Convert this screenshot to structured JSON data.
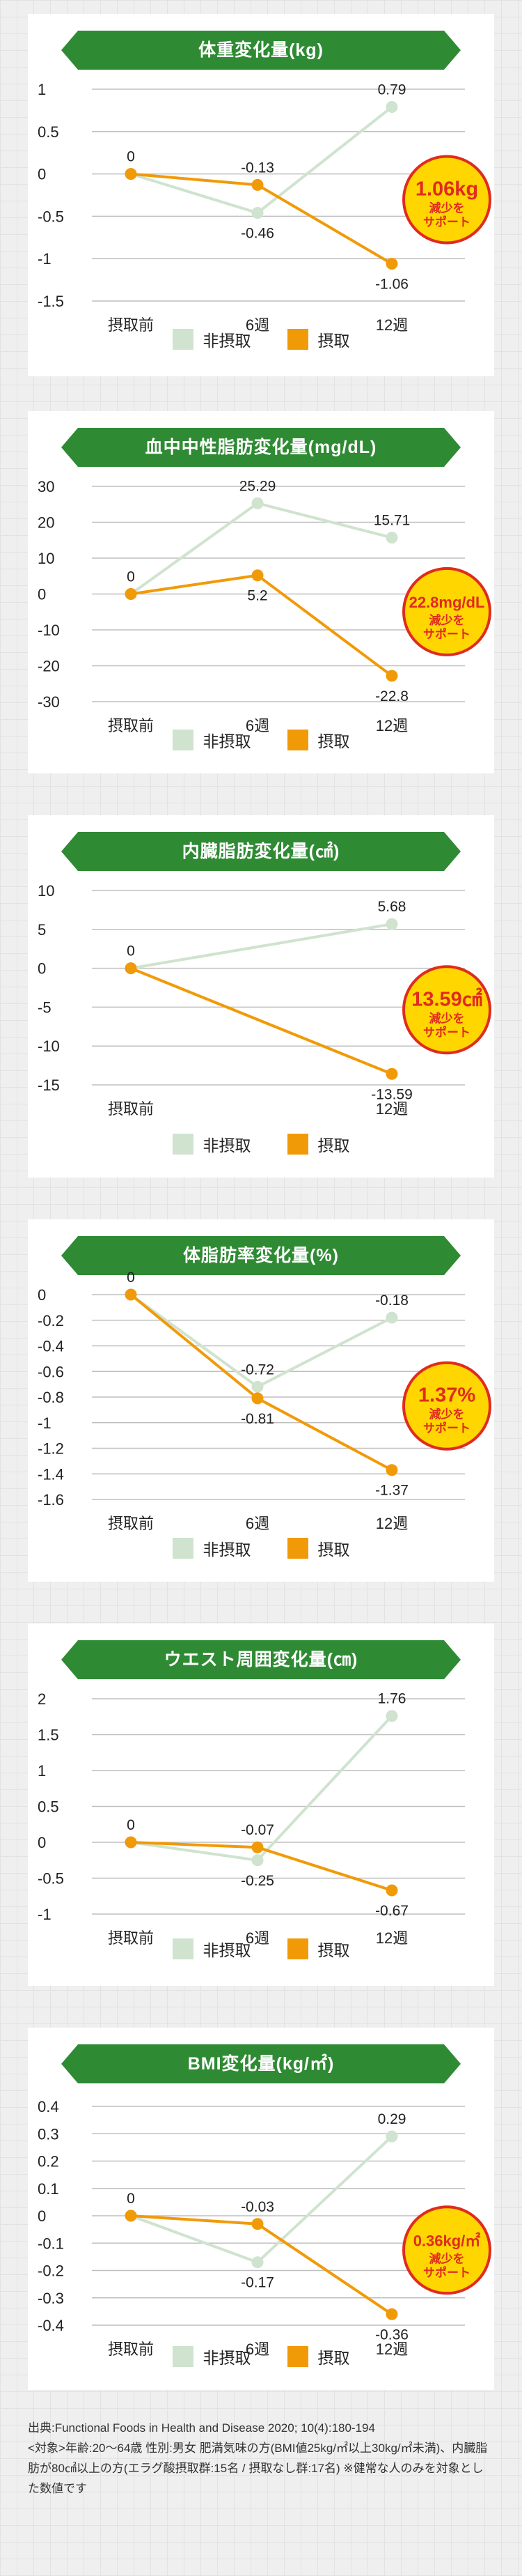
{
  "colors": {
    "banner": "#2f8a34",
    "series_non": "#cfe3cf",
    "series_take": "#f19a08",
    "grid": "#bfbfbf",
    "badge_fill": "#ffd600",
    "badge_stroke": "#e02b1f",
    "badge_text": "#e02b1f"
  },
  "legend": {
    "non_intake": "非摂取",
    "intake": "摂取"
  },
  "charts": [
    {
      "title": "体重変化量(kg)",
      "chart_data": {
        "type": "line",
        "categories": [
          "摂取前",
          "6週",
          "12週"
        ],
        "ylim": [
          -1.5,
          1
        ],
        "yticks": [
          "1",
          "0.5",
          "0",
          "-0.5",
          "-1",
          "-1.5"
        ],
        "series": [
          {
            "name": "非摂取",
            "values": [
              0,
              -0.46,
              0.79
            ],
            "labels": [
              "",
              "-0.46",
              "0.79"
            ]
          },
          {
            "name": "摂取",
            "values": [
              0,
              -0.13,
              -1.06
            ],
            "labels": [
              "0",
              "-0.13",
              "-1.06"
            ]
          }
        ]
      },
      "badge": {
        "value": "1.06kg",
        "line1": "減少を",
        "line2": "サポート"
      }
    },
    {
      "title": "血中中性脂肪変化量(mg/dL)",
      "chart_data": {
        "type": "line",
        "categories": [
          "摂取前",
          "6週",
          "12週"
        ],
        "ylim": [
          -30,
          30
        ],
        "yticks": [
          "30",
          "20",
          "10",
          "0",
          "-10",
          "-20",
          "-30"
        ],
        "series": [
          {
            "name": "非摂取",
            "values": [
              0,
              25.29,
              15.71
            ],
            "labels": [
              "",
              "25.29",
              "15.71"
            ]
          },
          {
            "name": "摂取",
            "values": [
              0,
              5.2,
              -22.8
            ],
            "labels": [
              "0",
              "5.2",
              "-22.8"
            ]
          }
        ]
      },
      "badge": {
        "value": "22.8mg/dL",
        "line1": "減少を",
        "line2": "サポート"
      }
    },
    {
      "title": "内臓脂肪変化量(㎠)",
      "chart_data": {
        "type": "line",
        "categories": [
          "摂取前",
          "12週"
        ],
        "ylim": [
          -15,
          10
        ],
        "yticks": [
          "10",
          "5",
          "0",
          "-5",
          "-10",
          "-15"
        ],
        "series": [
          {
            "name": "非摂取",
            "values": [
              0,
              5.68
            ],
            "labels": [
              "",
              "5.68"
            ]
          },
          {
            "name": "摂取",
            "values": [
              0,
              -13.59
            ],
            "labels": [
              "0",
              "-13.59"
            ]
          }
        ]
      },
      "badge": {
        "value": "13.59㎠",
        "line1": "減少を",
        "line2": "サポート"
      }
    },
    {
      "title": "体脂肪率変化量(%)",
      "chart_data": {
        "type": "line",
        "categories": [
          "摂取前",
          "6週",
          "12週"
        ],
        "ylim": [
          -1.6,
          0
        ],
        "yticks": [
          "0",
          "-0.2",
          "-0.4",
          "-0.6",
          "-0.8",
          "-1",
          "-1.2",
          "-1.4",
          "-1.6"
        ],
        "series": [
          {
            "name": "非摂取",
            "values": [
              0,
              -0.72,
              -0.18
            ],
            "labels": [
              "",
              "-0.72",
              "-0.18"
            ]
          },
          {
            "name": "摂取",
            "values": [
              0,
              -0.81,
              -1.37
            ],
            "labels": [
              "0",
              "-0.81",
              "-1.37"
            ]
          }
        ]
      },
      "badge": {
        "value": "1.37%",
        "line1": "減少を",
        "line2": "サポート"
      }
    },
    {
      "title": "ウエスト周囲変化量(㎝)",
      "chart_data": {
        "type": "line",
        "categories": [
          "摂取前",
          "6週",
          "12週"
        ],
        "ylim": [
          -1,
          2
        ],
        "yticks": [
          "2",
          "1.5",
          "1",
          "0.5",
          "0",
          "-0.5",
          "-1"
        ],
        "series": [
          {
            "name": "非摂取",
            "values": [
              0,
              -0.25,
              1.76
            ],
            "labels": [
              "",
              "-0.25",
              "1.76"
            ]
          },
          {
            "name": "摂取",
            "values": [
              0,
              -0.07,
              -0.67
            ],
            "labels": [
              "0",
              "-0.07",
              "-0.67"
            ]
          }
        ]
      }
    },
    {
      "title": "BMI変化量(kg/㎡)",
      "chart_data": {
        "type": "line",
        "categories": [
          "摂取前",
          "6週",
          "12週"
        ],
        "ylim": [
          -0.4,
          0.4
        ],
        "yticks": [
          "0.4",
          "0.3",
          "0.2",
          "0.1",
          "0",
          "-0.1",
          "-0.2",
          "-0.3",
          "-0.4"
        ],
        "series": [
          {
            "name": "非摂取",
            "values": [
              0,
              -0.17,
              0.29
            ],
            "labels": [
              "",
              "-0.17",
              "0.29"
            ]
          },
          {
            "name": "摂取",
            "values": [
              0,
              -0.03,
              -0.36
            ],
            "labels": [
              "0",
              "-0.03",
              "-0.36"
            ]
          }
        ]
      },
      "badge": {
        "value": "0.36kg/㎡",
        "line1": "減少を",
        "line2": "サポート"
      }
    }
  ],
  "footnote": {
    "line1": "出典:Functional Foods in Health and Disease 2020; 10(4):180-194",
    "line2": "<対象>年齢:20〜64歳 性別:男女 肥満気味の方(BMI値25kg/㎡以上30kg/㎡未満)、内臓脂肪が80㎠以上の方(エラグ酸摂取群:15名 / 摂取なし群:17名) ※健常な人のみを対象とした数値です"
  }
}
